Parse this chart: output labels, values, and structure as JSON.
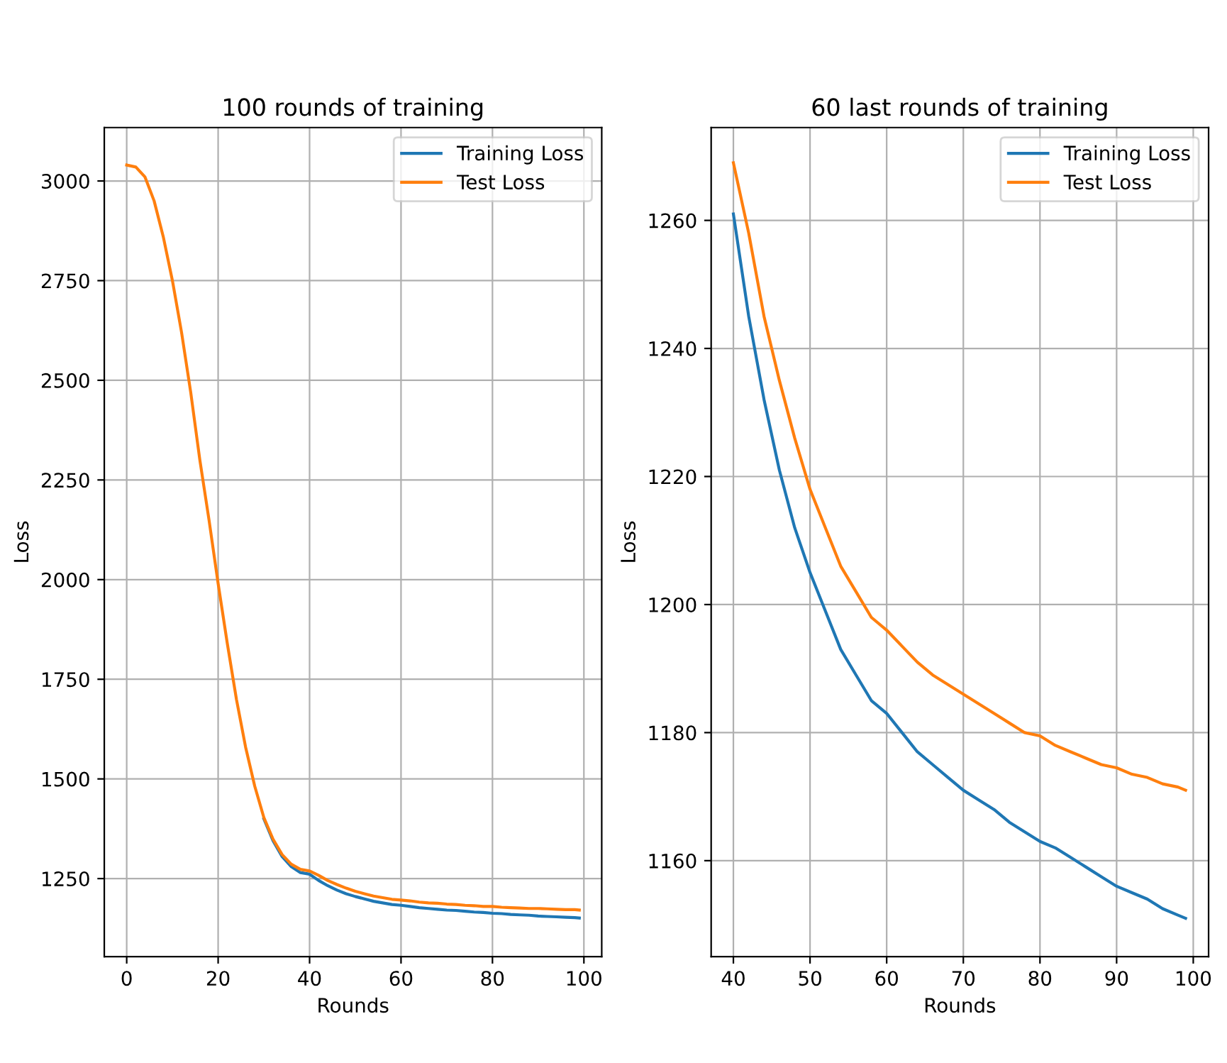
{
  "chart_data": [
    {
      "type": "line",
      "title": "100 rounds of training",
      "xlabel": "Rounds",
      "ylabel": "Loss",
      "xlim": [
        -4.9,
        103.9
      ],
      "ylim": [
        1054,
        3134
      ],
      "xticks": [
        0,
        20,
        40,
        60,
        80,
        100
      ],
      "yticks": [
        1250,
        1500,
        1750,
        2000,
        2250,
        2500,
        2750,
        3000
      ],
      "grid": true,
      "legend": "top right",
      "x": [
        0,
        2,
        4,
        6,
        8,
        10,
        12,
        14,
        16,
        18,
        20,
        22,
        24,
        26,
        28,
        30,
        32,
        34,
        36,
        38,
        40,
        42,
        44,
        46,
        48,
        50,
        52,
        54,
        56,
        58,
        60,
        62,
        64,
        66,
        68,
        70,
        72,
        74,
        76,
        78,
        80,
        82,
        84,
        86,
        88,
        90,
        92,
        94,
        96,
        98,
        99
      ],
      "series": [
        {
          "name": "Training Loss",
          "color": "#1f77b4",
          "values": [
            null,
            null,
            null,
            null,
            null,
            null,
            null,
            null,
            null,
            null,
            null,
            null,
            null,
            null,
            null,
            1400,
            1345,
            1305,
            1280,
            1265,
            1261,
            1245,
            1232,
            1221,
            1212,
            1205,
            1199,
            1193,
            1189,
            1185,
            1183,
            1180,
            1177,
            1175,
            1173,
            1171,
            1170,
            1168,
            1166,
            1165,
            1163,
            1162,
            1160,
            1159,
            1158,
            1156,
            1155,
            1154,
            1153,
            1152,
            1151
          ]
        },
        {
          "name": "Test Loss",
          "color": "#ff7f0e",
          "values": [
            3040,
            3035,
            3010,
            2950,
            2860,
            2750,
            2620,
            2470,
            2300,
            2150,
            1990,
            1840,
            1700,
            1580,
            1482,
            1403,
            1349,
            1310,
            1286,
            1273,
            1269,
            1258,
            1245,
            1235,
            1226,
            1218,
            1212,
            1206,
            1202,
            1198,
            1196,
            1194,
            1191,
            1189,
            1188,
            1186,
            1185,
            1183,
            1182,
            1180,
            1180,
            1178,
            1177,
            1176,
            1175,
            1175,
            1174,
            1173,
            1172,
            1172,
            1171
          ]
        }
      ]
    },
    {
      "type": "line",
      "title": "60 last rounds of training",
      "xlabel": "Rounds",
      "ylabel": "Loss",
      "xlim": [
        37.1,
        102
      ],
      "ylim": [
        1145,
        1274.5
      ],
      "xticks": [
        40,
        50,
        60,
        70,
        80,
        90,
        100
      ],
      "yticks": [
        1160,
        1180,
        1200,
        1220,
        1240,
        1260
      ],
      "grid": true,
      "legend": "top right",
      "x": [
        40,
        42,
        44,
        46,
        48,
        50,
        52,
        54,
        56,
        58,
        60,
        62,
        64,
        66,
        68,
        70,
        72,
        74,
        76,
        78,
        80,
        82,
        84,
        86,
        88,
        90,
        92,
        94,
        96,
        98,
        99
      ],
      "series": [
        {
          "name": "Training Loss",
          "color": "#1f77b4",
          "values": [
            1261,
            1245,
            1232,
            1221,
            1212,
            1205,
            1199,
            1193,
            1189,
            1185,
            1183,
            1180,
            1177,
            1175,
            1173,
            1171,
            1169.5,
            1168,
            1166,
            1164.5,
            1163,
            1162,
            1160.5,
            1159,
            1157.5,
            1156,
            1155,
            1154,
            1152.5,
            1151.5,
            1151
          ]
        },
        {
          "name": "Test Loss",
          "color": "#ff7f0e",
          "values": [
            1269,
            1258,
            1245,
            1235,
            1226,
            1218,
            1212,
            1206,
            1202,
            1198,
            1196,
            1193.5,
            1191,
            1189,
            1187.5,
            1186,
            1184.5,
            1183,
            1181.5,
            1180,
            1179.5,
            1178,
            1177,
            1176,
            1175,
            1174.5,
            1173.5,
            1173,
            1172,
            1171.5,
            1171
          ]
        }
      ]
    }
  ]
}
